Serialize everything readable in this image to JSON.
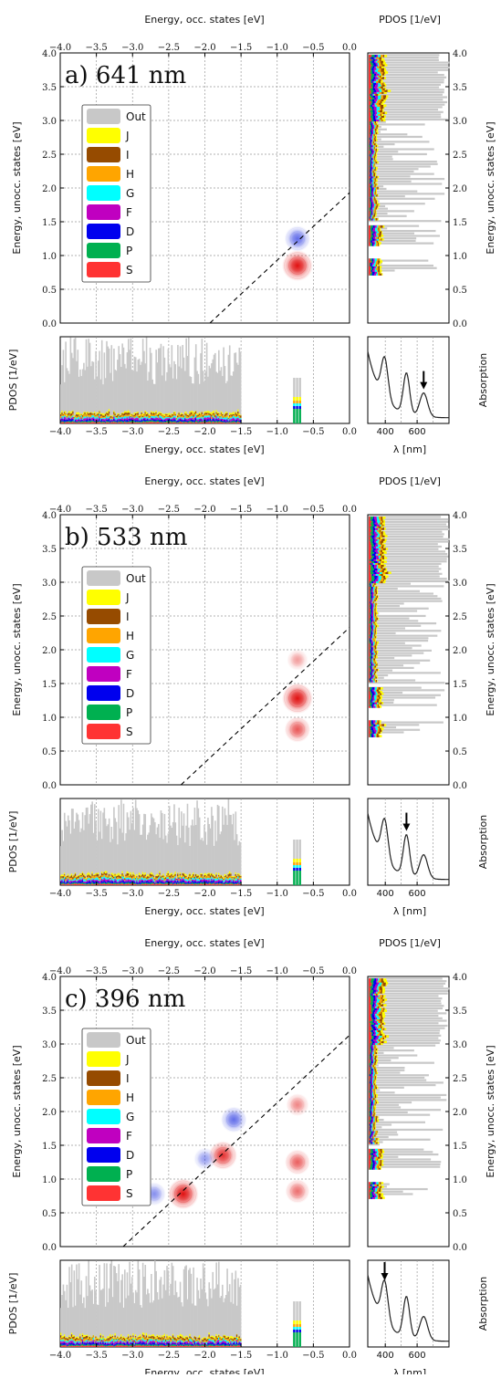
{
  "figure": {
    "labels": {
      "energy_occ": "Energy, occ. states [eV]",
      "energy_unocc": "Energy, unocc. states [eV]",
      "pdos": "PDOS [1/eV]",
      "absorption": "Absorption",
      "lambda": "λ [nm]"
    },
    "legend": [
      "Out",
      "J",
      "I",
      "H",
      "G",
      "F",
      "D",
      "P",
      "S"
    ]
  },
  "colors": {
    "Out": "#c8c8c8",
    "J": "#ffff00",
    "I": "#964b00",
    "H": "#ffa500",
    "G": "#00ffff",
    "F": "#c000c0",
    "D": "#0000ee",
    "P": "#00b050",
    "S": "#ff3333",
    "positive": "#e01010",
    "negative": "#2030e0"
  },
  "chart_data": [
    {
      "type": "heatmap",
      "title": "a) 641 nm",
      "xlabel": "Energy, occ. states [eV]",
      "ylabel": "Energy, unocc. states [eV]",
      "xlim": [
        -4.0,
        0.0
      ],
      "ylim": [
        0.0,
        4.0
      ],
      "xticks": [
        "−4.0",
        "−3.5",
        "−3.0",
        "−2.5",
        "−2.0",
        "−1.5",
        "−1.0",
        "−0.5",
        "0.0"
      ],
      "yticks": [
        "0.0",
        "0.5",
        "1.0",
        "1.5",
        "2.0",
        "2.5",
        "3.0",
        "3.5",
        "4.0"
      ],
      "photon_energy_eV": 1.93,
      "diagonal": {
        "x": [
          -1.93,
          0.0
        ],
        "y": [
          0.0,
          1.93
        ]
      },
      "blobs": [
        {
          "x": -0.72,
          "y": 0.85,
          "sign": "positive",
          "strength": 1.0
        },
        {
          "x": -0.72,
          "y": 1.25,
          "sign": "negative",
          "strength": 0.55
        }
      ],
      "absorption": {
        "xlabel": "λ [nm]",
        "xticks": [
          "400",
          "600"
        ],
        "arrow_nm": 641
      }
    },
    {
      "type": "heatmap",
      "title": "b) 533 nm",
      "xlabel": "Energy, occ. states [eV]",
      "ylabel": "Energy, unocc. states [eV]",
      "xlim": [
        -4.0,
        0.0
      ],
      "ylim": [
        0.0,
        4.0
      ],
      "xticks": [
        "−4.0",
        "−3.5",
        "−3.0",
        "−2.5",
        "−2.0",
        "−1.5",
        "−1.0",
        "−0.5",
        "0.0"
      ],
      "yticks": [
        "0.0",
        "0.5",
        "1.0",
        "1.5",
        "2.0",
        "2.5",
        "3.0",
        "3.5",
        "4.0"
      ],
      "photon_energy_eV": 2.33,
      "diagonal": {
        "x": [
          -2.33,
          0.0
        ],
        "y": [
          0.0,
          2.33
        ]
      },
      "blobs": [
        {
          "x": -0.72,
          "y": 1.28,
          "sign": "positive",
          "strength": 1.0
        },
        {
          "x": -0.72,
          "y": 0.82,
          "sign": "positive",
          "strength": 0.55
        },
        {
          "x": -0.72,
          "y": 1.85,
          "sign": "positive",
          "strength": 0.1
        }
      ],
      "absorption": {
        "xlabel": "λ [nm]",
        "xticks": [
          "400",
          "600"
        ],
        "arrow_nm": 533
      }
    },
    {
      "type": "heatmap",
      "title": "c) 396 nm",
      "xlabel": "Energy, occ. states [eV]",
      "ylabel": "Energy, unocc. states [eV]",
      "xlim": [
        -4.0,
        0.0
      ],
      "ylim": [
        0.0,
        4.0
      ],
      "xticks": [
        "−4.0",
        "−3.5",
        "−3.0",
        "−2.5",
        "−2.0",
        "−1.5",
        "−1.0",
        "−0.5",
        "0.0"
      ],
      "yticks": [
        "0.0",
        "0.5",
        "1.0",
        "1.5",
        "2.0",
        "2.5",
        "3.0",
        "3.5",
        "4.0"
      ],
      "photon_energy_eV": 3.13,
      "diagonal": {
        "x": [
          -3.13,
          0.0
        ],
        "y": [
          0.0,
          3.13
        ]
      },
      "blobs": [
        {
          "x": -2.3,
          "y": 0.78,
          "sign": "positive",
          "strength": 1.0
        },
        {
          "x": -1.75,
          "y": 1.35,
          "sign": "positive",
          "strength": 0.8
        },
        {
          "x": -0.72,
          "y": 1.25,
          "sign": "positive",
          "strength": 0.5
        },
        {
          "x": -0.72,
          "y": 0.82,
          "sign": "positive",
          "strength": 0.4
        },
        {
          "x": -0.72,
          "y": 2.1,
          "sign": "positive",
          "strength": 0.25
        },
        {
          "x": -1.6,
          "y": 1.88,
          "sign": "negative",
          "strength": 0.55
        },
        {
          "x": -2.7,
          "y": 0.78,
          "sign": "negative",
          "strength": 0.3
        },
        {
          "x": -2.0,
          "y": 1.3,
          "sign": "negative",
          "strength": 0.2
        }
      ],
      "absorption": {
        "xlabel": "λ [nm]",
        "xticks": [
          "400",
          "600"
        ],
        "arrow_nm": 396
      }
    }
  ]
}
